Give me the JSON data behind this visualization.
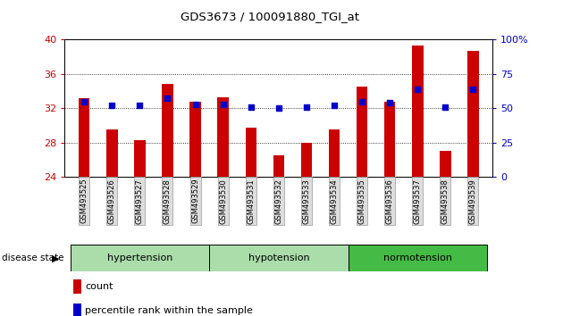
{
  "title": "GDS3673 / 100091880_TGI_at",
  "samples": [
    "GSM493525",
    "GSM493526",
    "GSM493527",
    "GSM493528",
    "GSM493529",
    "GSM493530",
    "GSM493531",
    "GSM493532",
    "GSM493533",
    "GSM493534",
    "GSM493535",
    "GSM493536",
    "GSM493537",
    "GSM493538",
    "GSM493539"
  ],
  "counts": [
    33.2,
    29.5,
    28.3,
    34.8,
    32.8,
    33.3,
    29.7,
    26.5,
    28.0,
    29.5,
    34.5,
    32.8,
    39.3,
    27.0,
    38.7
  ],
  "percentiles": [
    55,
    52,
    52,
    57,
    53,
    53,
    51,
    50,
    51,
    52,
    55,
    54,
    64,
    51,
    64
  ],
  "ylim_left": [
    24,
    40
  ],
  "ylim_right": [
    0,
    100
  ],
  "yticks_left": [
    24,
    28,
    32,
    36,
    40
  ],
  "yticks_right": [
    0,
    25,
    50,
    75,
    100
  ],
  "ytick_labels_right": [
    "0",
    "25",
    "50",
    "75",
    "100%"
  ],
  "groups": [
    {
      "label": "hypertension",
      "start": 0,
      "end": 4
    },
    {
      "label": "hypotension",
      "start": 5,
      "end": 9
    },
    {
      "label": "normotension",
      "start": 10,
      "end": 14
    }
  ],
  "group_colors": [
    "#AADDAA",
    "#AADDAA",
    "#44BB44"
  ],
  "bar_color": "#CC0000",
  "dot_color": "#0000CC",
  "label_count": "count",
  "label_percentile": "percentile rank within the sample",
  "disease_state_label": "disease state"
}
